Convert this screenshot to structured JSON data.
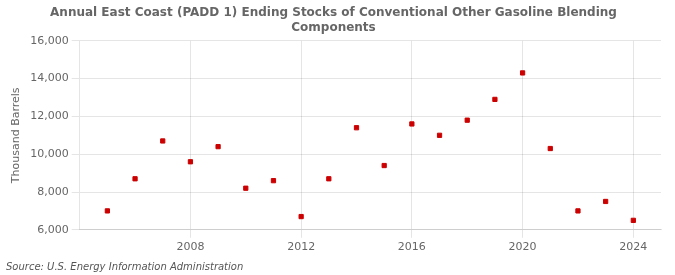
{
  "chart_data": {
    "type": "scatter",
    "title": "Annual East Coast (PADD 1) Ending Stocks of Conventional Other Gasoline Blending\nComponents",
    "y_label": "Thousand Barrels",
    "source": "Source: U.S. Energy Information Administration",
    "x": [
      2005,
      2006,
      2007,
      2008,
      2009,
      2010,
      2011,
      2012,
      2013,
      2014,
      2015,
      2016,
      2017,
      2018,
      2019,
      2020,
      2021,
      2022,
      2023,
      2024
    ],
    "values": [
      7000,
      8700,
      10700,
      9600,
      10400,
      8200,
      8600,
      6700,
      8700,
      11400,
      9400,
      11600,
      11000,
      11800,
      12900,
      14300,
      10300,
      7000,
      7500,
      6500
    ],
    "color": "#cc0000",
    "marker": "square",
    "xlim": [
      2004,
      2025
    ],
    "xticks": [
      2008,
      2012,
      2016,
      2020,
      2024
    ],
    "ylim": [
      6000,
      16000
    ],
    "yticks": [
      {
        "value": 6000,
        "label": "6,000"
      },
      {
        "value": 8000,
        "label": "8,000"
      },
      {
        "value": 10000,
        "label": "10,000"
      },
      {
        "value": 12000,
        "label": "12,000"
      },
      {
        "value": 14000,
        "label": "14,000"
      },
      {
        "value": 16000,
        "label": "16,000"
      }
    ],
    "grid": true
  }
}
